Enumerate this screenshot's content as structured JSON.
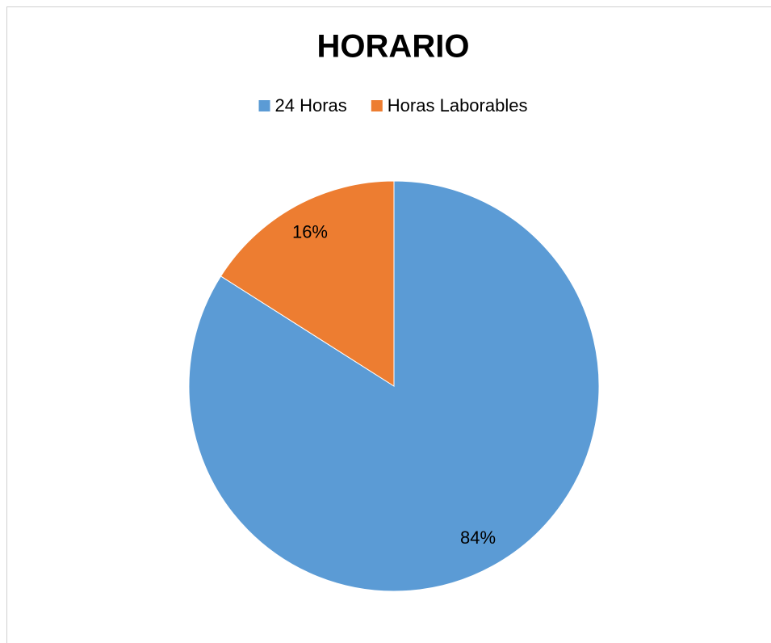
{
  "chart_data": {
    "type": "pie",
    "title": "HORARIO",
    "categories": [
      "24 Horas",
      "Horas Laborables"
    ],
    "values": [
      84,
      16
    ],
    "value_labels": [
      "84%",
      "16%"
    ],
    "colors": [
      "#5b9bd5",
      "#ed7d31"
    ],
    "legend": "top"
  }
}
